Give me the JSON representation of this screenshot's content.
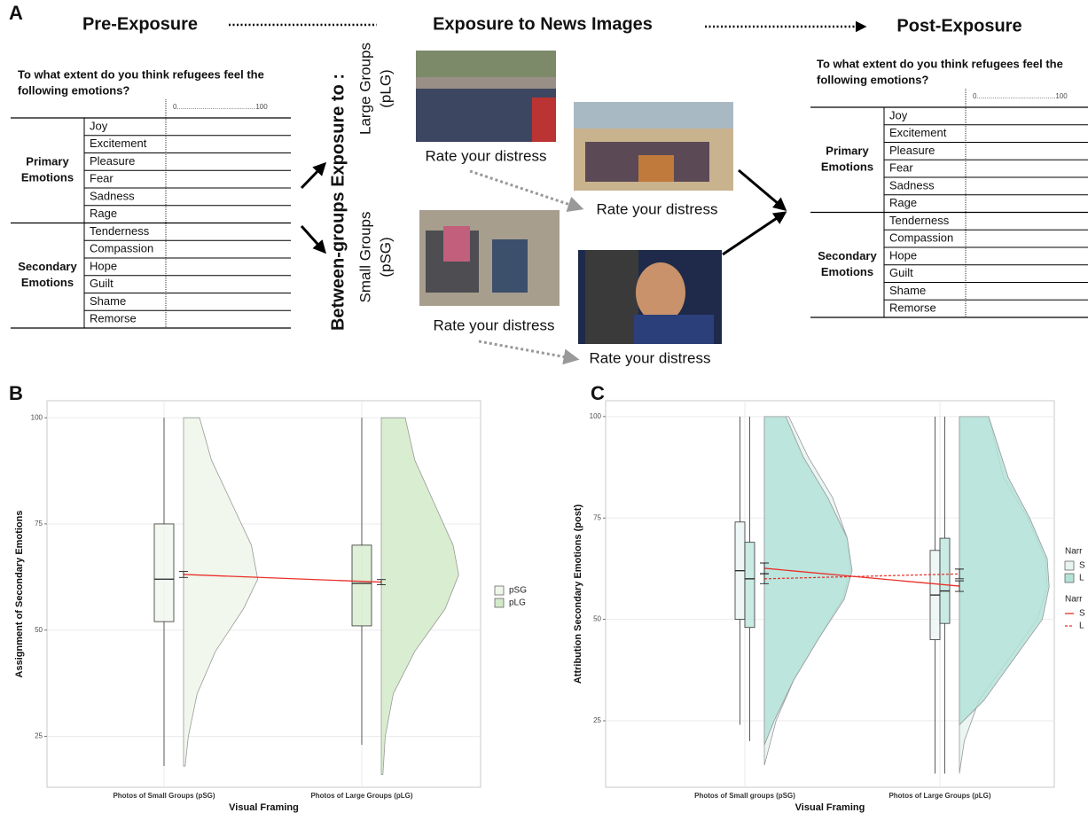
{
  "panel_a": {
    "label": "A",
    "stages": [
      "Pre-Exposure",
      "Exposure to News Images",
      "Post-Exposure"
    ],
    "question_lines": [
      "To what extent do you think refugees feel the",
      "following emotions?"
    ],
    "scale": "0........................................100",
    "groups": [
      {
        "label_lines": [
          "Primary",
          "Emotions"
        ],
        "items": [
          "Joy",
          "Excitement",
          "Pleasure",
          "Fear",
          "Sadness",
          "Rage"
        ]
      },
      {
        "label_lines": [
          "Secondary",
          "Emotions"
        ],
        "items": [
          "Tenderness",
          "Compassion",
          "Hope",
          "Guilt",
          "Shame",
          "Remorse"
        ]
      }
    ],
    "exposure": {
      "title": "Between-groups Exposure to :",
      "large": [
        "Large Groups",
        "(pLG)"
      ],
      "small": [
        "Small Groups",
        "(pSG)"
      ],
      "prompt": "Rate your distress"
    }
  },
  "chart_data": [
    {
      "type": "raincloud",
      "label": "B",
      "ylabel": "Assignment of Secondary Emotions",
      "xlabel": "Visual Framing",
      "categories": [
        "Photos of Small Groups (pSG)",
        "Photos of Large Groups (pLG)"
      ],
      "ylim": [
        13,
        104
      ],
      "yticks": [
        25,
        50,
        75,
        100
      ],
      "grid": true,
      "series": [
        {
          "name": "pSG",
          "color": "#eef6ea",
          "boxes": [
            {
              "low": 18,
              "q1": 52,
              "median": 62,
              "q3": 75,
              "high": 100
            },
            null
          ],
          "density": [
            {
              "y": [
                18,
                25,
                35,
                45,
                55,
                62,
                70,
                80,
                90,
                100
              ],
              "w": [
                0.02,
                0.06,
                0.17,
                0.4,
                0.75,
                0.93,
                0.85,
                0.6,
                0.35,
                0.2
              ]
            },
            null
          ]
        },
        {
          "name": "pLG",
          "color": "#d2eac8",
          "boxes": [
            null,
            {
              "low": 23,
              "q1": 51,
              "median": 61,
              "q3": 70,
              "high": 100
            }
          ],
          "density": [
            null,
            {
              "y": [
                16,
                25,
                35,
                45,
                55,
                63,
                70,
                80,
                90,
                100
              ],
              "w": [
                0.02,
                0.05,
                0.15,
                0.42,
                0.8,
                0.97,
                0.9,
                0.66,
                0.42,
                0.3
              ]
            }
          ]
        }
      ],
      "mean_lines": [
        {
          "color": "#e8312a",
          "dash": false,
          "values": [
            63.1,
            61.3
          ],
          "errors": [
            0.7,
            0.6
          ]
        }
      ]
    },
    {
      "type": "raincloud",
      "label": "C",
      "ylabel": "Attribution Secondary Emotions (post)",
      "xlabel": "Visual Framing",
      "categories": [
        "Photos of Small groups (pSG)",
        "Photos of Large Groups (pLG)"
      ],
      "ylim": [
        8.6,
        103.9
      ],
      "yticks": [
        25,
        50,
        75,
        100
      ],
      "grid": true,
      "legend_title": "Narr",
      "series": [
        {
          "name": "S",
          "color": "#e7f4f1",
          "boxes": [
            {
              "low": 24,
              "q1": 50,
              "median": 62,
              "q3": 74,
              "high": 100
            },
            {
              "low": 12,
              "q1": 45,
              "median": 56,
              "q3": 67,
              "high": 100
            }
          ],
          "density": [
            {
              "y": [
                14,
                25,
                35,
                45,
                55,
                62,
                70,
                80,
                90,
                100
              ],
              "w": [
                0.0,
                0.12,
                0.3,
                0.55,
                0.8,
                0.88,
                0.85,
                0.7,
                0.45,
                0.25
              ]
            },
            {
              "y": [
                12,
                20,
                30,
                40,
                50,
                58,
                65,
                75,
                85,
                100
              ],
              "w": [
                0.0,
                0.05,
                0.2,
                0.5,
                0.8,
                0.9,
                0.88,
                0.7,
                0.45,
                0.3
              ]
            }
          ]
        },
        {
          "name": "L",
          "color": "#b3e2d8",
          "boxes": [
            {
              "low": 20,
              "q1": 48,
              "median": 60,
              "q3": 69,
              "high": 100
            },
            {
              "low": 12,
              "q1": 49,
              "median": 57,
              "q3": 70,
              "high": 100
            }
          ],
          "density": [
            {
              "y": [
                19,
                25,
                35,
                45,
                55,
                62,
                70,
                80,
                90,
                100
              ],
              "w": [
                0.0,
                0.1,
                0.3,
                0.55,
                0.82,
                0.9,
                0.85,
                0.65,
                0.4,
                0.22
              ]
            },
            {
              "y": [
                24,
                30,
                40,
                50,
                58,
                65,
                75,
                85,
                100
              ],
              "w": [
                0.0,
                0.25,
                0.55,
                0.85,
                0.92,
                0.9,
                0.72,
                0.5,
                0.3
              ]
            }
          ]
        }
      ],
      "mean_lines": [
        {
          "name": "S",
          "color": "#e8312a",
          "dash": false,
          "values": [
            62.6,
            58.2
          ],
          "errors": [
            1.3,
            1.3
          ]
        },
        {
          "name": "L",
          "color": "#e8312a",
          "dash": true,
          "values": [
            60,
            61.2
          ],
          "errors": [
            1.2,
            1.2
          ]
        }
      ]
    }
  ]
}
